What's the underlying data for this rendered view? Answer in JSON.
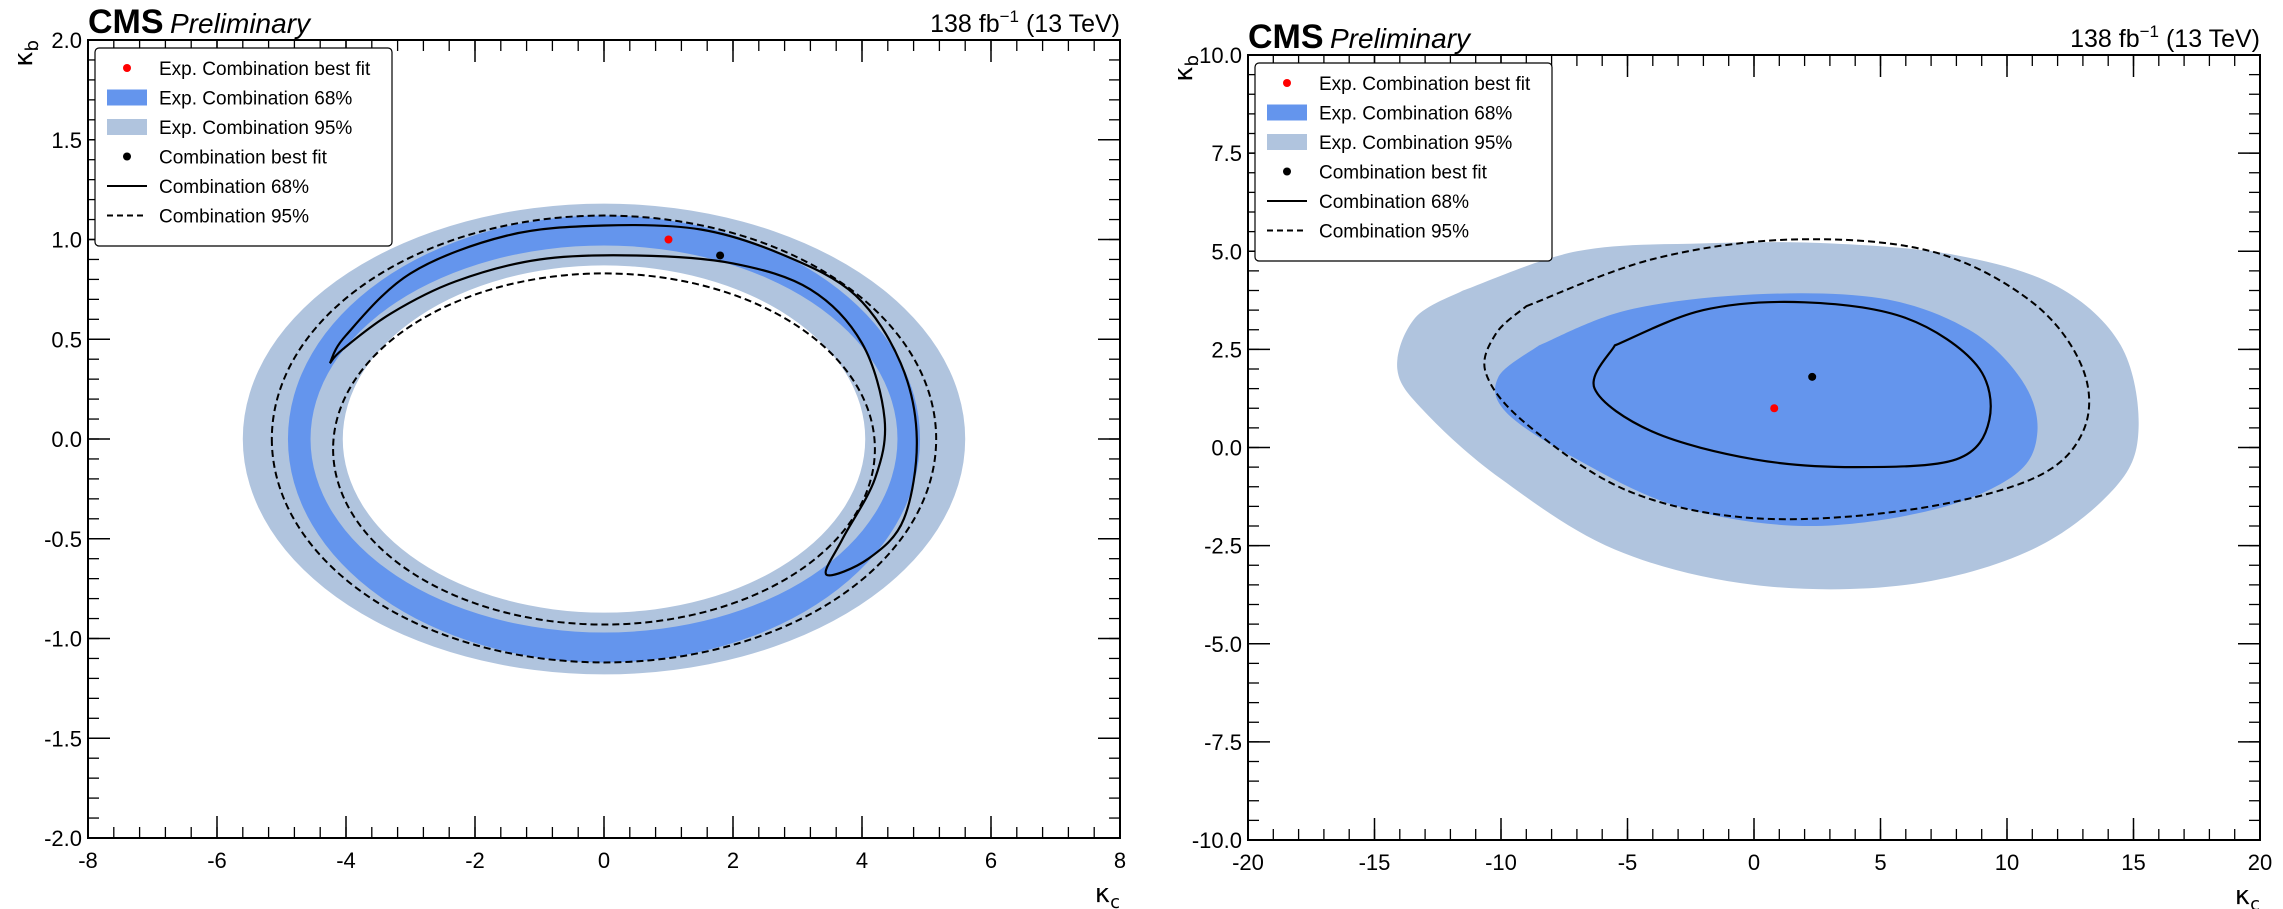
{
  "chart_data": [
    {
      "type": "contour",
      "header": {
        "experiment": "CMS",
        "status": "Preliminary",
        "lumi": "138 fb",
        "lumi_sup": "−1",
        "energy": " (13 TeV)"
      },
      "xlabel": "κ",
      "xlabel_sub": "c",
      "ylabel": "κ",
      "ylabel_sub": "b",
      "xlim": [
        -8,
        8
      ],
      "ylim": [
        -2,
        2
      ],
      "xticks": [
        -8,
        -6,
        -4,
        -2,
        0,
        2,
        4,
        6,
        8
      ],
      "yticks": [
        -2.0,
        -1.5,
        -1.0,
        -0.5,
        0.0,
        0.5,
        1.0,
        1.5,
        2.0
      ],
      "xtick_labels": [
        "-8",
        "-6",
        "-4",
        "-2",
        "0",
        "2",
        "4",
        "6",
        "8"
      ],
      "ytick_labels": [
        "-2.0",
        "-1.5",
        "-1.0",
        "-0.5",
        "0.0",
        "0.5",
        "1.0",
        "1.5",
        "2.0"
      ],
      "xminor": 0.4,
      "yminor": 0.1,
      "legend": {
        "position": "top-left",
        "entries": [
          {
            "label": "Exp. Combination best fit",
            "style": "red-dot"
          },
          {
            "label": "Exp. Combination 68%",
            "style": "band-68"
          },
          {
            "label": "Exp. Combination 95%",
            "style": "band-95"
          },
          {
            "label": "Combination best fit",
            "style": "black-dot"
          },
          {
            "label": "Combination 68%",
            "style": "solid"
          },
          {
            "label": "Combination 95%",
            "style": "dashed"
          }
        ]
      },
      "exp_best_fit": [
        1.0,
        1.0
      ],
      "obs_best_fit": [
        1.8,
        0.92
      ],
      "exp95_outer": {
        "cx": 0.0,
        "cy": 0.0,
        "rx": 5.6,
        "ry": 1.18
      },
      "exp95_inner": {
        "cx": 0.0,
        "cy": 0.0,
        "rx": 4.05,
        "ry": 0.87
      },
      "exp68_outer": {
        "cx": 0.0,
        "cy": 0.0,
        "rx": 4.9,
        "ry": 1.12
      },
      "exp68_inner": {
        "cx": 0.0,
        "cy": 0.0,
        "rx": 4.55,
        "ry": 0.97
      },
      "obs95_outer": {
        "cx": 0.0,
        "cy": 0.0,
        "rx": 5.15,
        "ry": 1.12
      },
      "obs95_inner": {
        "cx": 0.0,
        "cy": -0.05,
        "rx": 4.2,
        "ry": 0.88
      },
      "obs68_path": [
        [
          -4.25,
          0.38
        ],
        [
          -4.0,
          0.52
        ],
        [
          -3.0,
          0.83
        ],
        [
          -1.5,
          1.02
        ],
        [
          0.0,
          1.07
        ],
        [
          1.5,
          1.05
        ],
        [
          2.8,
          0.92
        ],
        [
          3.9,
          0.72
        ],
        [
          4.6,
          0.38
        ],
        [
          4.85,
          0.0
        ],
        [
          4.65,
          -0.4
        ],
        [
          4.1,
          -0.6
        ],
        [
          3.45,
          -0.68
        ],
        [
          3.7,
          -0.5
        ],
        [
          4.2,
          -0.2
        ],
        [
          4.35,
          0.1
        ],
        [
          4.0,
          0.48
        ],
        [
          3.2,
          0.75
        ],
        [
          2.0,
          0.88
        ],
        [
          0.5,
          0.92
        ],
        [
          -1.0,
          0.9
        ],
        [
          -2.3,
          0.79
        ],
        [
          -3.3,
          0.63
        ],
        [
          -4.05,
          0.45
        ],
        [
          -4.25,
          0.38
        ]
      ]
    },
    {
      "type": "contour",
      "header": {
        "experiment": "CMS",
        "status": "Preliminary",
        "lumi": "138 fb",
        "lumi_sup": "−1",
        "energy": " (13 TeV)"
      },
      "xlabel": "κ",
      "xlabel_sub": "c",
      "ylabel": "κ",
      "ylabel_sub": "b",
      "xlim": [
        -20,
        20
      ],
      "ylim": [
        -10,
        10
      ],
      "xticks": [
        -20,
        -15,
        -10,
        -5,
        0,
        5,
        10,
        15,
        20
      ],
      "yticks": [
        -10,
        -7.5,
        -5,
        -2.5,
        0,
        2.5,
        5,
        7.5,
        10
      ],
      "xtick_labels": [
        "-20",
        "-15",
        "-10",
        "-5",
        "0",
        "5",
        "10",
        "15",
        "20"
      ],
      "ytick_labels": [
        "-10.0",
        "-7.5",
        "-5.0",
        "-2.5",
        "0.0",
        "2.5",
        "5.0",
        "7.5",
        "10.0"
      ],
      "xminor": 1,
      "yminor": 0.5,
      "legend": {
        "position": "top-left",
        "entries": [
          {
            "label": "Exp. Combination best fit",
            "style": "red-dot"
          },
          {
            "label": "Exp. Combination 68%",
            "style": "band-68"
          },
          {
            "label": "Exp. Combination 95%",
            "style": "band-95"
          },
          {
            "label": "Combination best fit",
            "style": "black-dot"
          },
          {
            "label": "Combination 68%",
            "style": "solid"
          },
          {
            "label": "Combination 95%",
            "style": "dashed"
          }
        ]
      },
      "exp_best_fit": [
        0.8,
        1.0
      ],
      "obs_best_fit": [
        2.3,
        1.8
      ],
      "exp95_poly": [
        [
          -11.5,
          4.0
        ],
        [
          -7.0,
          5.0
        ],
        [
          -2.0,
          5.2
        ],
        [
          3.0,
          5.2
        ],
        [
          8.0,
          4.9
        ],
        [
          12.0,
          4.1
        ],
        [
          14.5,
          2.6
        ],
        [
          15.2,
          0.5
        ],
        [
          14.3,
          -1.0
        ],
        [
          11.0,
          -2.6
        ],
        [
          6.0,
          -3.5
        ],
        [
          0.0,
          -3.5
        ],
        [
          -5.5,
          -2.6
        ],
        [
          -10.0,
          -0.8
        ],
        [
          -13.0,
          0.9
        ],
        [
          -14.1,
          2.0
        ],
        [
          -13.4,
          3.3
        ],
        [
          -11.5,
          4.0
        ]
      ],
      "exp68_poly": [
        [
          -8.5,
          2.6
        ],
        [
          -5.0,
          3.5
        ],
        [
          0.0,
          3.9
        ],
        [
          5.0,
          3.8
        ],
        [
          8.5,
          3.0
        ],
        [
          10.6,
          1.7
        ],
        [
          11.2,
          0.4
        ],
        [
          10.3,
          -0.7
        ],
        [
          7.0,
          -1.6
        ],
        [
          2.0,
          -2.0
        ],
        [
          -3.0,
          -1.5
        ],
        [
          -7.0,
          -0.3
        ],
        [
          -9.8,
          0.9
        ],
        [
          -10.1,
          1.8
        ],
        [
          -8.5,
          2.6
        ]
      ],
      "obs95_poly": [
        [
          -9.0,
          3.6
        ],
        [
          -4.0,
          4.8
        ],
        [
          1.5,
          5.3
        ],
        [
          7.0,
          5.0
        ],
        [
          11.0,
          3.7
        ],
        [
          13.0,
          2.0
        ],
        [
          13.0,
          0.4
        ],
        [
          11.0,
          -0.8
        ],
        [
          6.0,
          -1.6
        ],
        [
          0.0,
          -1.8
        ],
        [
          -5.0,
          -1.1
        ],
        [
          -9.0,
          0.6
        ],
        [
          -10.6,
          1.9
        ],
        [
          -10.2,
          2.9
        ],
        [
          -9.0,
          3.6
        ]
      ],
      "obs68_poly": [
        [
          -5.5,
          2.6
        ],
        [
          -2.0,
          3.5
        ],
        [
          2.0,
          3.7
        ],
        [
          6.0,
          3.3
        ],
        [
          8.8,
          2.1
        ],
        [
          9.3,
          0.7
        ],
        [
          8.0,
          -0.3
        ],
        [
          4.0,
          -0.5
        ],
        [
          0.0,
          -0.3
        ],
        [
          -4.0,
          0.4
        ],
        [
          -6.3,
          1.5
        ],
        [
          -5.5,
          2.6
        ]
      ]
    }
  ]
}
